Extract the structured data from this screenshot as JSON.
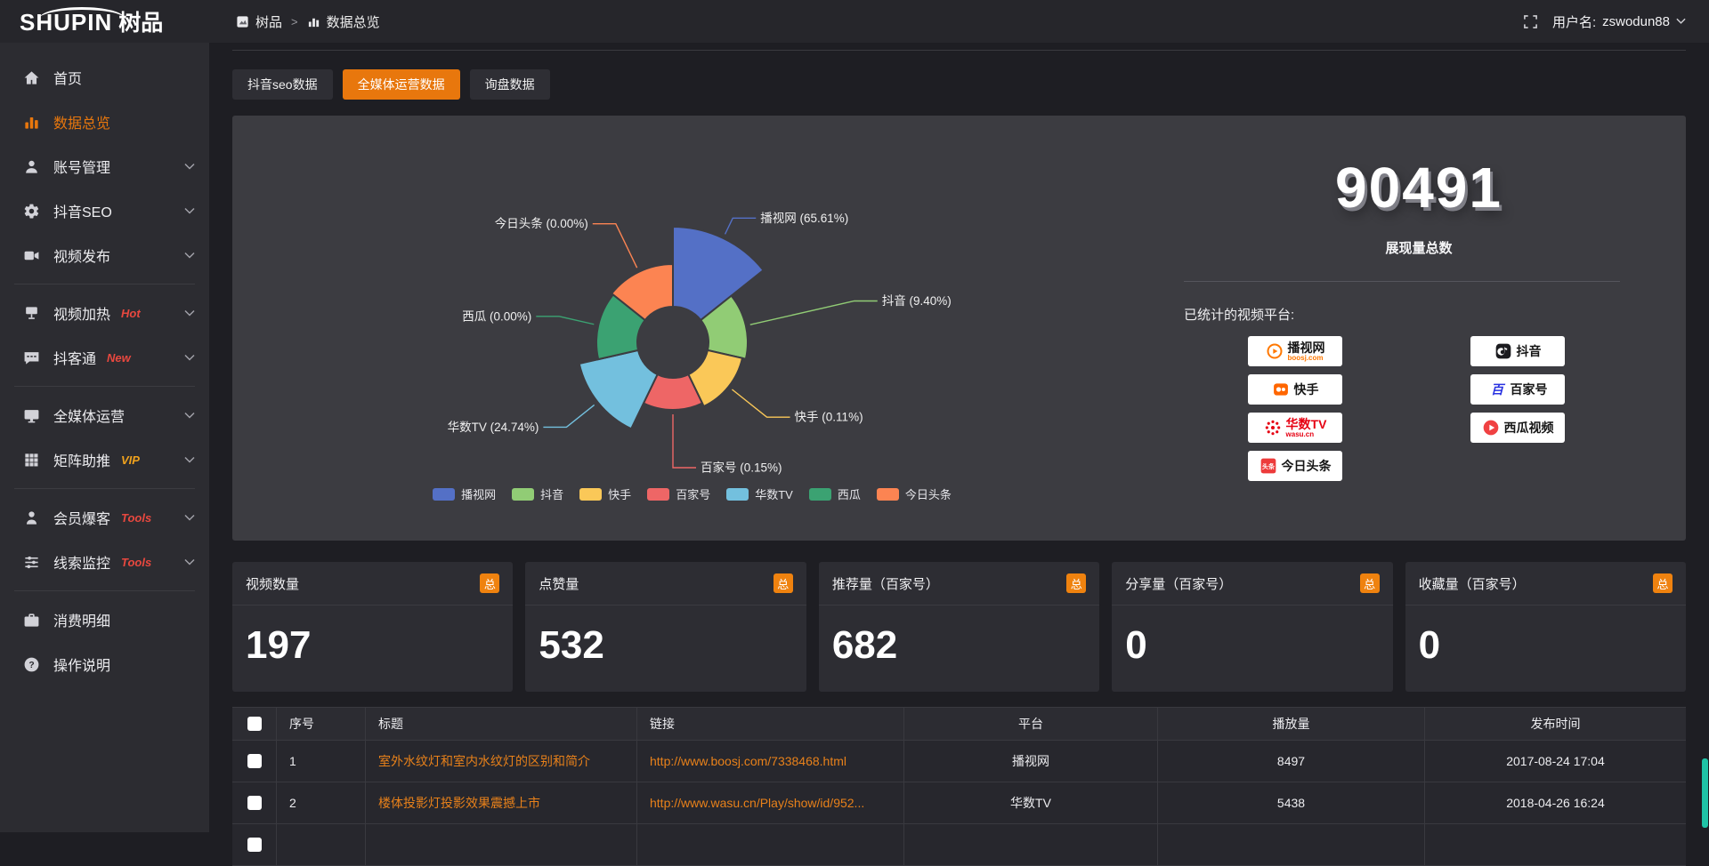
{
  "colors": {
    "accent": "#e8770d",
    "badge": "#ef820f",
    "link": "#e8811a",
    "scrollbar": "#1fc3a6",
    "panel": "#3c3c41"
  },
  "topbar": {
    "logo_en": "SHUPIN",
    "logo_cn": "树品",
    "breadcrumb": {
      "root": "树品",
      "separator": ">",
      "current": "数据总览"
    },
    "user_label": "用户名:",
    "username": "zswodun88"
  },
  "sidebar": {
    "items": [
      {
        "label": "首页",
        "icon": "home"
      },
      {
        "label": "数据总览",
        "icon": "chart",
        "active": true
      },
      {
        "label": "账号管理",
        "icon": "user",
        "arrow": true
      },
      {
        "label": "抖音SEO",
        "icon": "gear",
        "arrow": true
      },
      {
        "label": "视频发布",
        "icon": "video",
        "arrow": true
      },
      {
        "divider": true
      },
      {
        "label": "视频加热",
        "icon": "heat",
        "badge": "Hot",
        "badge_color": "#e8483f",
        "arrow": true
      },
      {
        "label": "抖客通",
        "icon": "chat",
        "badge": "New",
        "badge_color": "#e8483f",
        "arrow": true
      },
      {
        "divider": true
      },
      {
        "label": "全媒体运营",
        "icon": "monitor",
        "arrow": true
      },
      {
        "label": "矩阵助推",
        "icon": "grid",
        "badge": "VIP",
        "badge_color": "#f0a21d",
        "arrow": true
      },
      {
        "divider": true
      },
      {
        "label": "会员爆客",
        "icon": "member",
        "badge": "Tools",
        "badge_color": "#e8483f",
        "arrow": true
      },
      {
        "label": "线索监控",
        "icon": "sliders",
        "badge": "Tools",
        "badge_color": "#e8483f",
        "arrow": true
      },
      {
        "divider": true
      },
      {
        "label": "消费明细",
        "icon": "wallet"
      },
      {
        "label": "操作说明",
        "icon": "question"
      }
    ]
  },
  "tabs": [
    {
      "label": "抖音seo数据",
      "active": false
    },
    {
      "label": "全媒体运营数据",
      "active": true
    },
    {
      "label": "询盘数据",
      "active": false
    }
  ],
  "chart_data": {
    "type": "pie",
    "rose": true,
    "legend_position": "bottom",
    "inner_radius": 40,
    "slices": [
      {
        "name": "播视网",
        "percent": 65.61,
        "label": "播视网 (65.61%)",
        "color": "#5470c6",
        "radius": 130
      },
      {
        "name": "抖音",
        "percent": 9.4,
        "label": "抖音 (9.40%)",
        "color": "#91cc75",
        "radius": 84
      },
      {
        "name": "快手",
        "percent": 0.11,
        "label": "快手 (0.11%)",
        "color": "#fac858",
        "radius": 80
      },
      {
        "name": "百家号",
        "percent": 0.15,
        "label": "百家号 (0.15%)",
        "color": "#ee6666",
        "radius": 76
      },
      {
        "name": "华数TV",
        "percent": 24.74,
        "label": "华数TV (24.74%)",
        "color": "#73c0de",
        "radius": 108
      },
      {
        "name": "西瓜",
        "percent": 0.0,
        "label": "西瓜 (0.00%)",
        "color": "#3ba272",
        "radius": 86
      },
      {
        "name": "今日头条",
        "percent": 0.0,
        "label": "今日头条 (0.00%)",
        "color": "#fc8452",
        "radius": 88
      }
    ]
  },
  "summary": {
    "total": "90491",
    "total_label": "展现量总数",
    "platforms_label": "已统计的视频平台:",
    "platform_logos": {
      "left": [
        {
          "name": "播视网",
          "sub": "boosj.com",
          "color": "#ff7800",
          "sub_color": "#ff7800",
          "icon": "play"
        },
        {
          "name": "快手",
          "color": "#ff6600",
          "icon": "kuaishou"
        },
        {
          "name": "华数TV",
          "sub": "wasu.cn",
          "color": "#e60012",
          "sub_color": "#e60012",
          "name_color": "#e60012",
          "icon": "burst"
        },
        {
          "name": "今日头条",
          "color": "#ed3b3b",
          "icon": "toutiao"
        }
      ],
      "right": [
        {
          "name": "抖音",
          "color": "#1b1b1f",
          "icon": "douyin"
        },
        {
          "name": "百家号",
          "color": "#2932e1",
          "icon": "baijia"
        },
        {
          "name": "西瓜视频",
          "color": "#f04142",
          "icon": "xigua"
        }
      ]
    }
  },
  "stat_cards": [
    {
      "label": "视频数量",
      "badge": "总",
      "value": "197"
    },
    {
      "label": "点赞量",
      "badge": "总",
      "value": "532"
    },
    {
      "label": "推荐量（百家号）",
      "badge": "总",
      "value": "682"
    },
    {
      "label": "分享量（百家号）",
      "badge": "总",
      "value": "0"
    },
    {
      "label": "收藏量（百家号）",
      "badge": "总",
      "value": "0"
    }
  ],
  "table": {
    "headers": [
      "序号",
      "标题",
      "链接",
      "平台",
      "播放量",
      "发布时间"
    ],
    "rows": [
      {
        "no": "1",
        "title": "室外水纹灯和室内水纹灯的区别和简介",
        "link": "http://www.boosj.com/7338468.html",
        "platform": "播视网",
        "plays": "8497",
        "time": "2017-08-24 17:04"
      },
      {
        "no": "2",
        "title": "楼体投影灯投影效果震撼上市",
        "link": "http://www.wasu.cn/Play/show/id/952...",
        "platform": "华数TV",
        "plays": "5438",
        "time": "2018-04-26 16:24"
      }
    ]
  }
}
